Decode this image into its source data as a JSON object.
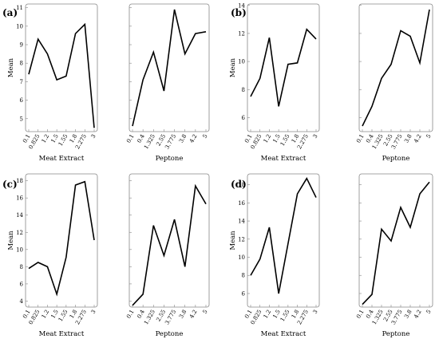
{
  "chart_data": [
    {
      "type": "line",
      "panel_label": "(a)",
      "ylabel": "Mean",
      "ylim": [
        4.3,
        11.2
      ],
      "yticks": [
        "5",
        "6",
        "7",
        "8",
        "9",
        "10",
        "11"
      ],
      "subplots": [
        {
          "xlabel": "Meat Extract",
          "categories": [
            "0.1",
            "0.825",
            "1.2",
            "1.5",
            "1.55",
            "1.8",
            "2.275",
            "3"
          ],
          "values": [
            7.4,
            9.3,
            8.5,
            7.1,
            7.3,
            9.6,
            10.1,
            4.5
          ]
        },
        {
          "xlabel": "Peptone",
          "categories": [
            "0.1",
            "0.4",
            "1.325",
            "2.55",
            "3.775",
            "3.8",
            "4.2",
            "5"
          ],
          "values": [
            4.6,
            7.1,
            8.6,
            6.5,
            10.9,
            8.5,
            9.6,
            9.7
          ]
        }
      ]
    },
    {
      "type": "line",
      "panel_label": "(b)",
      "ylabel": "Mean",
      "ylim": [
        5.0,
        14.1
      ],
      "yticks": [
        "6",
        "8",
        "10",
        "12",
        "14"
      ],
      "subplots": [
        {
          "xlabel": "Meat Extract",
          "categories": [
            "0.1",
            "0.825",
            "1.2",
            "1.5",
            "1.55",
            "1.8",
            "2.275",
            "3"
          ],
          "values": [
            7.5,
            8.8,
            11.7,
            6.8,
            9.8,
            9.9,
            12.3,
            11.6
          ]
        },
        {
          "xlabel": "Peptone",
          "categories": [
            "0.1",
            "0.4",
            "1.325",
            "2.55",
            "3.775",
            "3.8",
            "4.2",
            "5"
          ],
          "values": [
            5.4,
            6.8,
            8.8,
            9.8,
            12.2,
            11.8,
            9.9,
            13.7
          ]
        }
      ]
    },
    {
      "type": "line",
      "panel_label": "(c)",
      "ylabel": "Mean",
      "ylim": [
        3.3,
        18.8
      ],
      "yticks": [
        "4",
        "6",
        "8",
        "10",
        "12",
        "14",
        "16",
        "18"
      ],
      "subplots": [
        {
          "xlabel": "Meat Extract",
          "categories": [
            "0.1",
            "0.825",
            "1.2",
            "1.5",
            "1.55",
            "1.8",
            "2.275",
            "3"
          ],
          "values": [
            7.8,
            8.5,
            8.0,
            4.8,
            9.1,
            17.5,
            17.9,
            11.1
          ]
        },
        {
          "xlabel": "Peptone",
          "categories": [
            "0.1",
            "0.4",
            "1.325",
            "2.55",
            "3.775",
            "3.8",
            "4.2",
            "5"
          ],
          "values": [
            3.5,
            4.8,
            12.8,
            9.3,
            13.5,
            8.0,
            17.4,
            15.3
          ]
        }
      ]
    },
    {
      "type": "line",
      "panel_label": "(d)",
      "ylabel": "Mean",
      "ylim": [
        4.5,
        19.2
      ],
      "yticks": [
        "6",
        "8",
        "10",
        "12",
        "14",
        "16",
        "18"
      ],
      "subplots": [
        {
          "xlabel": "Meat Extract",
          "categories": [
            "0.1",
            "0.825",
            "1.2",
            "1.5",
            "1.55",
            "1.8",
            "2.275",
            "3"
          ],
          "values": [
            8.0,
            9.8,
            13.3,
            6.0,
            11.5,
            17.0,
            18.7,
            16.6
          ]
        },
        {
          "xlabel": "Peptone",
          "categories": [
            "0.1",
            "0.4",
            "1.325",
            "2.55",
            "3.775",
            "3.8",
            "4.2",
            "5"
          ],
          "values": [
            4.8,
            5.9,
            13.1,
            11.8,
            15.5,
            13.3,
            17.0,
            18.3
          ]
        }
      ]
    }
  ]
}
